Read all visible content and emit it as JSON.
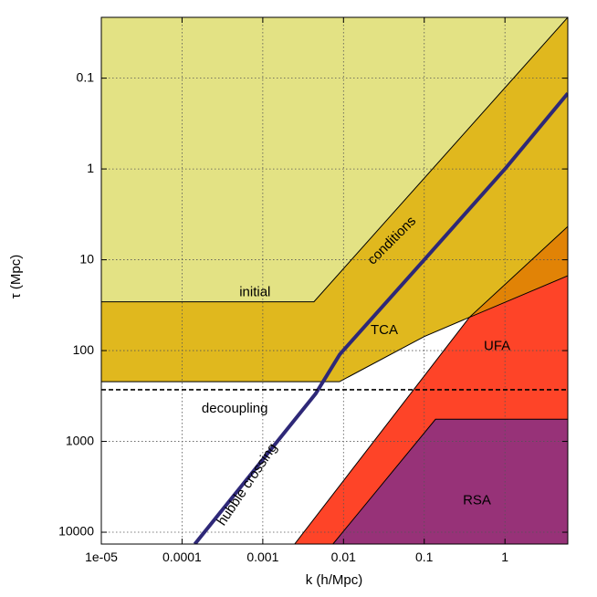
{
  "chart_data": {
    "type": "area",
    "title": "",
    "xlabel": "k   (h/Mpc)",
    "ylabel": "τ   (Mpc)",
    "x_scale": "log",
    "y_scale": "log",
    "y_inverted": true,
    "xlim": [
      1e-05,
      6.0
    ],
    "ylim": [
      0.0214,
      13500
    ],
    "grid": true,
    "x_ticks": [
      1e-05,
      0.0001,
      0.001,
      0.01,
      0.1,
      1
    ],
    "x_tick_labels": [
      "1e-05",
      "0.0001",
      "0.001",
      "0.01",
      "0.1",
      "1"
    ],
    "y_ticks": [
      0.1,
      1,
      10,
      100,
      1000,
      10000
    ],
    "y_tick_labels": [
      "0.1",
      "1",
      "10",
      "100",
      "1000",
      "10000"
    ],
    "regions": [
      {
        "name": "initial conditions",
        "color": "#e3e284",
        "points": [
          [
            1e-05,
            0.0214
          ],
          [
            6.0,
            0.0214
          ],
          [
            6.0,
            13500
          ],
          [
            1e-05,
            13500
          ]
        ]
      },
      {
        "name": "TCA",
        "color": "#e0b81e",
        "points": [
          [
            1e-05,
            29
          ],
          [
            0.0043,
            29
          ],
          [
            6.0,
            0.0214
          ],
          [
            6.0,
            4.3
          ],
          [
            0.363,
            43
          ],
          [
            0.1,
            70
          ],
          [
            0.0089,
            220
          ],
          [
            1e-05,
            220
          ]
        ]
      },
      {
        "name": "decoupled",
        "color": "#ffffff",
        "points": [
          [
            1e-05,
            220
          ],
          [
            0.0089,
            220
          ],
          [
            0.1,
            70
          ],
          [
            0.363,
            43
          ],
          [
            6.0,
            15
          ],
          [
            6.0,
            13500
          ],
          [
            1e-05,
            13500
          ]
        ]
      },
      {
        "name": "UFA overlap",
        "color": "#e18306",
        "points": [
          [
            6.0,
            4.3
          ],
          [
            6.0,
            15
          ],
          [
            0.363,
            43
          ]
        ]
      },
      {
        "name": "UFA",
        "color": "#fe4428",
        "points": [
          [
            0.363,
            43
          ],
          [
            6.0,
            15
          ],
          [
            6.0,
            13500
          ],
          [
            0.00248,
            13500
          ]
        ]
      },
      {
        "name": "RSA",
        "color": "#973278",
        "points": [
          [
            0.138,
            570
          ],
          [
            6.0,
            570
          ],
          [
            6.0,
            13500
          ],
          [
            0.0074,
            13500
          ]
        ]
      }
    ],
    "boundaries": [
      {
        "name": "initial conditions",
        "color": "#000000",
        "width": 1,
        "points": [
          [
            1e-05,
            29
          ],
          [
            0.0043,
            29
          ],
          [
            6.0,
            0.0214
          ]
        ]
      },
      {
        "name": "TCA end",
        "color": "#000000",
        "width": 1,
        "points": [
          [
            1e-05,
            220
          ],
          [
            0.0089,
            220
          ],
          [
            0.1,
            70
          ],
          [
            0.363,
            43
          ],
          [
            6.0,
            4.3
          ]
        ]
      },
      {
        "name": "UFA start",
        "color": "#000000",
        "width": 1,
        "points": [
          [
            0.00248,
            13500
          ],
          [
            0.363,
            43
          ],
          [
            6.0,
            15
          ]
        ]
      },
      {
        "name": "RSA start",
        "color": "#000000",
        "width": 1,
        "points": [
          [
            0.0074,
            13500
          ],
          [
            0.138,
            570
          ],
          [
            6.0,
            570
          ]
        ]
      }
    ],
    "series": [
      {
        "name": "hubble crossing",
        "color": "#2e2878",
        "x": [
          0.000144,
          0.0045,
          0.009,
          0.1,
          1,
          6.0
        ],
        "y": [
          13500,
          300,
          110,
          10,
          1,
          0.147
        ]
      }
    ],
    "reference_lines": [
      {
        "name": "decoupling",
        "y": 270,
        "style": "dashed",
        "color": "#000000"
      }
    ],
    "annotations": [
      {
        "text": "initial",
        "x": 0.0008,
        "y": 23,
        "rotation": 0
      },
      {
        "text": "conditions",
        "x": 0.04,
        "y": 6.2,
        "rotation": -45
      },
      {
        "text": "TCA",
        "x": 0.032,
        "y": 60,
        "rotation": 0
      },
      {
        "text": "UFA",
        "x": 0.8,
        "y": 90,
        "rotation": 0
      },
      {
        "text": "RSA",
        "x": 0.45,
        "y": 4500,
        "rotation": 0
      },
      {
        "text": "decoupling",
        "x": 0.00045,
        "y": 440,
        "rotation": 0
      },
      {
        "text": "hubble crossing",
        "x": 0.00065,
        "y": 3000,
        "rotation": -56
      }
    ]
  }
}
